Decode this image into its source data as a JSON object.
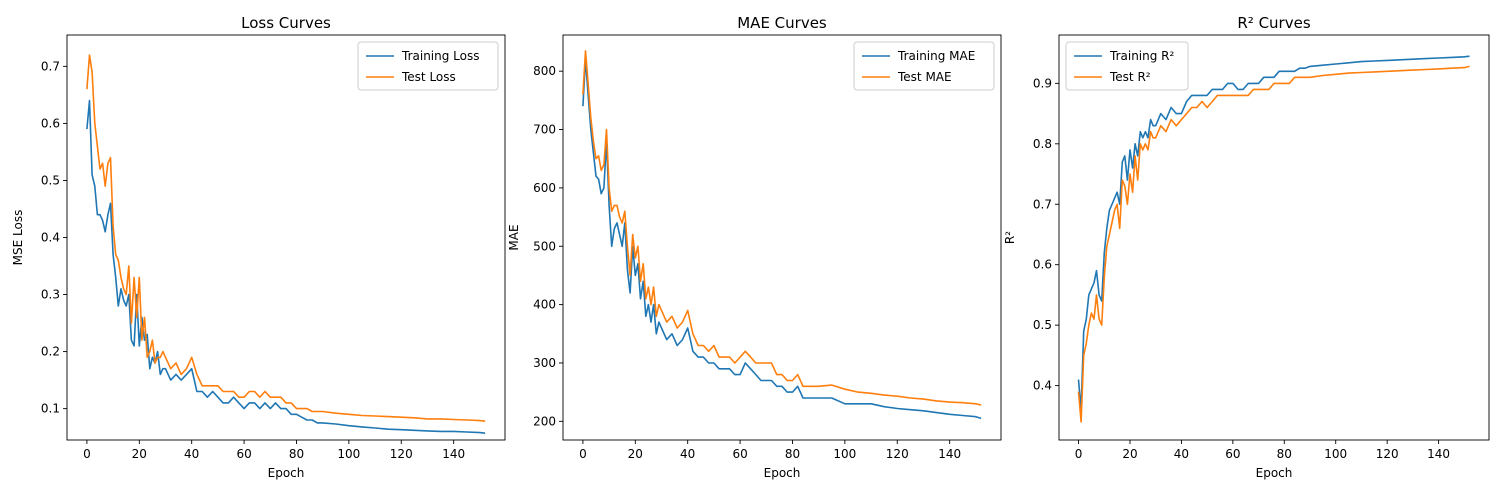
{
  "chart_data": [
    {
      "type": "line",
      "title": "Loss Curves",
      "xlabel": "Epoch",
      "ylabel": "MSE Loss",
      "xlim": [
        -7.6,
        159.6
      ],
      "ylim": [
        0.045,
        0.755
      ],
      "xticks": [
        0,
        20,
        40,
        60,
        80,
        100,
        120,
        140
      ],
      "yticks": [
        0.1,
        0.2,
        0.3,
        0.4,
        0.5,
        0.6,
        0.7
      ],
      "ytick_decimals": 1,
      "legend": "top-right",
      "grid": false,
      "series": [
        {
          "name": "Training Loss",
          "color": "#1f77b4",
          "x": [
            0,
            1,
            2,
            3,
            4,
            5,
            6,
            7,
            8,
            9,
            10,
            11,
            12,
            13,
            14,
            15,
            16,
            17,
            18,
            19,
            20,
            21,
            22,
            23,
            24,
            25,
            26,
            27,
            28,
            29,
            30,
            32,
            34,
            36,
            38,
            40,
            42,
            44,
            46,
            48,
            50,
            52,
            54,
            56,
            58,
            60,
            62,
            64,
            66,
            68,
            70,
            72,
            74,
            76,
            78,
            80,
            82,
            84,
            86,
            88,
            90,
            95,
            100,
            105,
            110,
            115,
            120,
            125,
            130,
            135,
            140,
            145,
            150,
            152
          ],
          "values": [
            0.59,
            0.64,
            0.51,
            0.49,
            0.44,
            0.44,
            0.43,
            0.41,
            0.44,
            0.46,
            0.37,
            0.33,
            0.28,
            0.31,
            0.29,
            0.28,
            0.3,
            0.22,
            0.21,
            0.3,
            0.21,
            0.26,
            0.22,
            0.23,
            0.17,
            0.19,
            0.18,
            0.2,
            0.16,
            0.17,
            0.17,
            0.15,
            0.16,
            0.15,
            0.16,
            0.17,
            0.13,
            0.13,
            0.12,
            0.13,
            0.12,
            0.11,
            0.11,
            0.12,
            0.11,
            0.1,
            0.11,
            0.11,
            0.1,
            0.11,
            0.1,
            0.11,
            0.1,
            0.1,
            0.09,
            0.09,
            0.085,
            0.08,
            0.08,
            0.075,
            0.075,
            0.073,
            0.07,
            0.068,
            0.066,
            0.064,
            0.063,
            0.062,
            0.061,
            0.06,
            0.06,
            0.059,
            0.058,
            0.057
          ]
        },
        {
          "name": "Test Loss",
          "color": "#ff7f0e",
          "x": [
            0,
            1,
            2,
            3,
            4,
            5,
            6,
            7,
            8,
            9,
            10,
            11,
            12,
            13,
            14,
            15,
            16,
            17,
            18,
            19,
            20,
            21,
            22,
            23,
            24,
            25,
            26,
            27,
            28,
            29,
            30,
            32,
            34,
            36,
            38,
            40,
            42,
            44,
            46,
            48,
            50,
            52,
            54,
            56,
            58,
            60,
            62,
            64,
            66,
            68,
            70,
            72,
            74,
            76,
            78,
            80,
            82,
            84,
            86,
            88,
            90,
            95,
            100,
            105,
            110,
            115,
            120,
            125,
            130,
            135,
            140,
            145,
            150,
            152
          ],
          "values": [
            0.66,
            0.72,
            0.69,
            0.6,
            0.56,
            0.52,
            0.53,
            0.49,
            0.53,
            0.54,
            0.42,
            0.37,
            0.36,
            0.33,
            0.31,
            0.3,
            0.35,
            0.25,
            0.33,
            0.26,
            0.33,
            0.22,
            0.26,
            0.19,
            0.2,
            0.22,
            0.18,
            0.19,
            0.19,
            0.2,
            0.19,
            0.17,
            0.18,
            0.16,
            0.17,
            0.19,
            0.16,
            0.14,
            0.14,
            0.14,
            0.14,
            0.13,
            0.13,
            0.13,
            0.12,
            0.12,
            0.13,
            0.13,
            0.12,
            0.13,
            0.12,
            0.12,
            0.12,
            0.11,
            0.11,
            0.1,
            0.1,
            0.1,
            0.095,
            0.095,
            0.095,
            0.092,
            0.09,
            0.088,
            0.087,
            0.086,
            0.085,
            0.084,
            0.082,
            0.082,
            0.081,
            0.08,
            0.079,
            0.078
          ]
        }
      ]
    },
    {
      "type": "line",
      "title": "MAE Curves",
      "xlabel": "Epoch",
      "ylabel": "MAE",
      "xlim": [
        -7.6,
        159.6
      ],
      "ylim": [
        168,
        862
      ],
      "xticks": [
        0,
        20,
        40,
        60,
        80,
        100,
        120,
        140
      ],
      "yticks": [
        200,
        300,
        400,
        500,
        600,
        700,
        800
      ],
      "ytick_decimals": 0,
      "legend": "top-right",
      "grid": false,
      "series": [
        {
          "name": "Training MAE",
          "color": "#1f77b4",
          "x": [
            0,
            1,
            2,
            3,
            4,
            5,
            6,
            7,
            8,
            9,
            10,
            11,
            12,
            13,
            14,
            15,
            16,
            17,
            18,
            19,
            20,
            21,
            22,
            23,
            24,
            25,
            26,
            27,
            28,
            29,
            30,
            32,
            34,
            36,
            38,
            40,
            42,
            44,
            46,
            48,
            50,
            52,
            54,
            56,
            58,
            60,
            62,
            64,
            66,
            68,
            70,
            72,
            74,
            76,
            78,
            80,
            82,
            84,
            86,
            88,
            90,
            95,
            100,
            105,
            110,
            115,
            120,
            125,
            130,
            135,
            140,
            145,
            150,
            152
          ],
          "values": [
            740,
            820,
            760,
            700,
            660,
            620,
            615,
            590,
            600,
            680,
            570,
            500,
            530,
            540,
            520,
            500,
            540,
            460,
            420,
            500,
            450,
            470,
            410,
            440,
            380,
            400,
            370,
            400,
            350,
            370,
            360,
            340,
            350,
            330,
            340,
            360,
            320,
            310,
            310,
            300,
            300,
            290,
            290,
            290,
            280,
            280,
            300,
            290,
            280,
            270,
            270,
            270,
            260,
            260,
            250,
            250,
            260,
            240,
            240,
            240,
            240,
            240,
            230,
            230,
            230,
            225,
            222,
            220,
            218,
            215,
            212,
            210,
            208,
            205
          ]
        },
        {
          "name": "Test MAE",
          "color": "#ff7f0e",
          "x": [
            0,
            1,
            2,
            3,
            4,
            5,
            6,
            7,
            8,
            9,
            10,
            11,
            12,
            13,
            14,
            15,
            16,
            17,
            18,
            19,
            20,
            21,
            22,
            23,
            24,
            25,
            26,
            27,
            28,
            29,
            30,
            32,
            34,
            36,
            38,
            40,
            42,
            44,
            46,
            48,
            50,
            52,
            54,
            56,
            58,
            60,
            62,
            64,
            66,
            68,
            70,
            72,
            74,
            76,
            78,
            80,
            82,
            84,
            86,
            88,
            90,
            95,
            100,
            105,
            110,
            115,
            120,
            125,
            130,
            135,
            140,
            145,
            150,
            152
          ],
          "values": [
            760,
            835,
            780,
            720,
            680,
            650,
            655,
            630,
            640,
            700,
            600,
            560,
            570,
            570,
            550,
            540,
            560,
            500,
            450,
            520,
            480,
            500,
            440,
            470,
            410,
            430,
            400,
            430,
            380,
            400,
            390,
            370,
            380,
            360,
            370,
            390,
            350,
            330,
            330,
            320,
            330,
            310,
            310,
            310,
            300,
            310,
            320,
            310,
            300,
            300,
            300,
            300,
            280,
            280,
            270,
            270,
            280,
            260,
            260,
            260,
            260,
            262,
            255,
            250,
            248,
            245,
            243,
            240,
            238,
            235,
            233,
            232,
            230,
            228
          ]
        }
      ]
    },
    {
      "type": "line",
      "title": "R² Curves",
      "xlabel": "Epoch",
      "ylabel": "R²",
      "xlim": [
        -7.6,
        159.6
      ],
      "ylim": [
        0.31,
        0.98
      ],
      "xticks": [
        0,
        20,
        40,
        60,
        80,
        100,
        120,
        140
      ],
      "yticks": [
        0.4,
        0.5,
        0.6,
        0.7,
        0.8,
        0.9
      ],
      "ytick_decimals": 1,
      "legend": "top-left",
      "grid": false,
      "series": [
        {
          "name": "Training R²",
          "color": "#1f77b4",
          "x": [
            0,
            1,
            2,
            3,
            4,
            5,
            6,
            7,
            8,
            9,
            10,
            11,
            12,
            13,
            14,
            15,
            16,
            17,
            18,
            19,
            20,
            21,
            22,
            23,
            24,
            25,
            26,
            27,
            28,
            29,
            30,
            32,
            34,
            36,
            38,
            40,
            42,
            44,
            46,
            48,
            50,
            52,
            54,
            56,
            58,
            60,
            62,
            64,
            66,
            68,
            70,
            72,
            74,
            76,
            78,
            80,
            82,
            84,
            86,
            88,
            90,
            95,
            100,
            105,
            110,
            115,
            120,
            125,
            130,
            135,
            140,
            145,
            150,
            152
          ],
          "values": [
            0.41,
            0.36,
            0.49,
            0.51,
            0.55,
            0.56,
            0.57,
            0.59,
            0.55,
            0.54,
            0.62,
            0.66,
            0.69,
            0.7,
            0.71,
            0.72,
            0.7,
            0.77,
            0.78,
            0.74,
            0.79,
            0.76,
            0.8,
            0.78,
            0.82,
            0.81,
            0.82,
            0.81,
            0.84,
            0.83,
            0.83,
            0.85,
            0.84,
            0.86,
            0.85,
            0.85,
            0.87,
            0.88,
            0.88,
            0.88,
            0.88,
            0.89,
            0.89,
            0.89,
            0.9,
            0.9,
            0.89,
            0.89,
            0.9,
            0.9,
            0.9,
            0.91,
            0.91,
            0.91,
            0.92,
            0.92,
            0.92,
            0.92,
            0.925,
            0.925,
            0.928,
            0.93,
            0.932,
            0.934,
            0.936,
            0.937,
            0.938,
            0.939,
            0.94,
            0.941,
            0.942,
            0.943,
            0.944,
            0.945
          ]
        },
        {
          "name": "Test R²",
          "color": "#ff7f0e",
          "x": [
            0,
            1,
            2,
            3,
            4,
            5,
            6,
            7,
            8,
            9,
            10,
            11,
            12,
            13,
            14,
            15,
            16,
            17,
            18,
            19,
            20,
            21,
            22,
            23,
            24,
            25,
            26,
            27,
            28,
            29,
            30,
            32,
            34,
            36,
            38,
            40,
            42,
            44,
            46,
            48,
            50,
            52,
            54,
            56,
            58,
            60,
            62,
            64,
            66,
            68,
            70,
            72,
            74,
            76,
            78,
            80,
            82,
            84,
            86,
            88,
            90,
            95,
            100,
            105,
            110,
            115,
            120,
            125,
            130,
            135,
            140,
            145,
            150,
            152
          ],
          "values": [
            0.39,
            0.34,
            0.45,
            0.47,
            0.5,
            0.52,
            0.51,
            0.55,
            0.51,
            0.5,
            0.58,
            0.63,
            0.65,
            0.67,
            0.69,
            0.7,
            0.66,
            0.74,
            0.73,
            0.7,
            0.75,
            0.72,
            0.78,
            0.74,
            0.8,
            0.79,
            0.8,
            0.79,
            0.82,
            0.81,
            0.81,
            0.83,
            0.82,
            0.84,
            0.83,
            0.84,
            0.85,
            0.86,
            0.86,
            0.87,
            0.86,
            0.87,
            0.88,
            0.88,
            0.88,
            0.88,
            0.88,
            0.88,
            0.88,
            0.89,
            0.89,
            0.89,
            0.89,
            0.9,
            0.9,
            0.9,
            0.9,
            0.91,
            0.91,
            0.91,
            0.91,
            0.913,
            0.915,
            0.917,
            0.918,
            0.919,
            0.92,
            0.921,
            0.922,
            0.923,
            0.924,
            0.925,
            0.926,
            0.928
          ]
        }
      ]
    }
  ]
}
